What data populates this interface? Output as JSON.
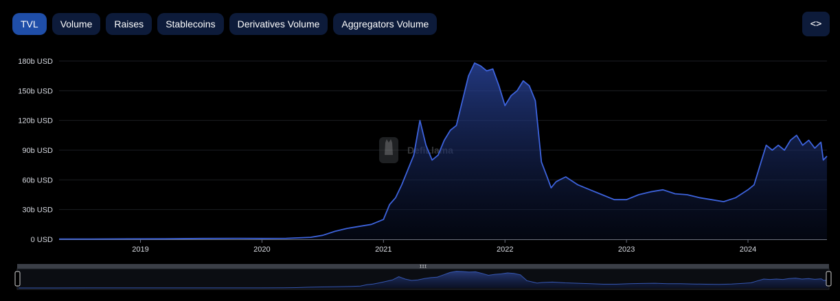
{
  "tabs": [
    {
      "label": "TVL",
      "active": true
    },
    {
      "label": "Volume",
      "active": false
    },
    {
      "label": "Raises",
      "active": false
    },
    {
      "label": "Stablecoins",
      "active": false
    },
    {
      "label": "Derivatives Volume",
      "active": false
    },
    {
      "label": "Aggregators Volume",
      "active": false
    }
  ],
  "embed_button": {
    "icon": "code-brackets-icon",
    "glyph": "<>"
  },
  "watermark": {
    "text": "DefiLlama",
    "icon": "llama-logo-icon"
  },
  "colors": {
    "line": "#3d63dd",
    "tab_bg": "#0d1b3a",
    "tab_active": "#1f4ea8",
    "background": "#000000"
  },
  "chart_data": {
    "type": "area",
    "title": "",
    "xlabel": "",
    "ylabel": "",
    "y_unit": "USD",
    "ylim": [
      0,
      180
    ],
    "y_ticks": [
      {
        "value": 0,
        "label": "0 USD"
      },
      {
        "value": 30,
        "label": "30b USD"
      },
      {
        "value": 60,
        "label": "60b USD"
      },
      {
        "value": 90,
        "label": "90b USD"
      },
      {
        "value": 120,
        "label": "120b USD"
      },
      {
        "value": 150,
        "label": "150b USD"
      },
      {
        "value": 180,
        "label": "180b USD"
      }
    ],
    "x_ticks": [
      {
        "value": 2019,
        "label": "2019"
      },
      {
        "value": 2020,
        "label": "2020"
      },
      {
        "value": 2021,
        "label": "2021"
      },
      {
        "value": 2022,
        "label": "2022"
      },
      {
        "value": 2023,
        "label": "2023"
      },
      {
        "value": 2024,
        "label": "2024"
      }
    ],
    "xlim": [
      2018.33,
      2024.65
    ],
    "grid": true,
    "series": [
      {
        "values_unit": "billions USD",
        "x": [
          2018.33,
          2018.6,
          2018.9,
          2019.2,
          2019.5,
          2019.8,
          2020.0,
          2020.2,
          2020.4,
          2020.5,
          2020.6,
          2020.7,
          2020.8,
          2020.9,
          2021.0,
          2021.05,
          2021.1,
          2021.15,
          2021.2,
          2021.25,
          2021.3,
          2021.35,
          2021.4,
          2021.45,
          2021.5,
          2021.55,
          2021.6,
          2021.65,
          2021.7,
          2021.75,
          2021.8,
          2021.85,
          2021.9,
          2021.95,
          2022.0,
          2022.05,
          2022.1,
          2022.15,
          2022.2,
          2022.25,
          2022.3,
          2022.35,
          2022.38,
          2022.42,
          2022.45,
          2022.5,
          2022.6,
          2022.7,
          2022.8,
          2022.9,
          2023.0,
          2023.1,
          2023.2,
          2023.3,
          2023.4,
          2023.5,
          2023.6,
          2023.7,
          2023.8,
          2023.9,
          2024.0,
          2024.05,
          2024.1,
          2024.15,
          2024.2,
          2024.25,
          2024.3,
          2024.35,
          2024.4,
          2024.45,
          2024.5,
          2024.55,
          2024.6,
          2024.62,
          2024.65
        ],
        "values": [
          0.3,
          0.3,
          0.4,
          0.5,
          0.8,
          1.0,
          0.8,
          1.0,
          2.0,
          4.0,
          8.0,
          11.0,
          13.0,
          15.0,
          20.0,
          35.0,
          42.0,
          55.0,
          70.0,
          85.0,
          120.0,
          95.0,
          80.0,
          85.0,
          100.0,
          110.0,
          115.0,
          140.0,
          165.0,
          178.0,
          175.0,
          170.0,
          172.0,
          155.0,
          135.0,
          145.0,
          150.0,
          160.0,
          155.0,
          140.0,
          78.0,
          62.0,
          52.0,
          58.0,
          60.0,
          63.0,
          55.0,
          50.0,
          45.0,
          40.0,
          40.0,
          45.0,
          48.0,
          50.0,
          46.0,
          45.0,
          42.0,
          40.0,
          38.0,
          42.0,
          50.0,
          55.0,
          75.0,
          95.0,
          90.0,
          95.0,
          90.0,
          100.0,
          105.0,
          95.0,
          100.0,
          92.0,
          98.0,
          80.0,
          84.0
        ]
      }
    ]
  }
}
